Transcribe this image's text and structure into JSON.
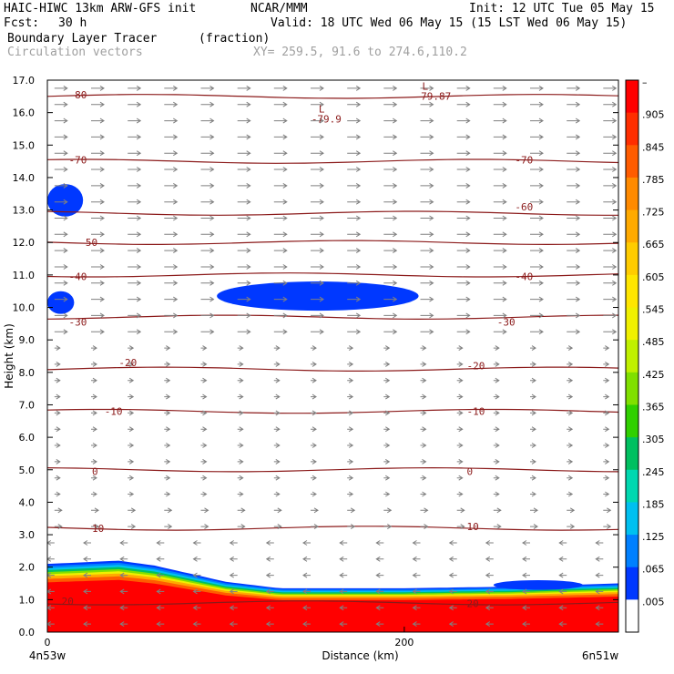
{
  "header": {
    "model": "HAIC-HIWC 13km ARW-GFS init",
    "org": "NCAR/MMM",
    "init": "Init: 12 UTC Tue 05 May 15",
    "fcst_label": "Fcst:",
    "fcst_value": "30 h",
    "valid": "Valid: 18 UTC Wed 06 May 15 (15 LST Wed 06 May 15)",
    "field1": "Boundary Layer Tracer",
    "field1_units": "(fraction)",
    "field2": "Circulation vectors",
    "xy": "XY= 259.5, 91.6 to 274.6,110.2"
  },
  "chart_data": {
    "type": "heatmap",
    "xlabel": "Distance (km)",
    "ylabel": "Height (km)",
    "xlim": [
      0,
      320
    ],
    "ylim": [
      0,
      17
    ],
    "x_ticks": [
      {
        "v": 0,
        "label": "0"
      },
      {
        "v": 200,
        "label": "200"
      }
    ],
    "x_end_labels": [
      "4n53w",
      "6n51w"
    ],
    "y_ticks": [
      "0.0",
      "1.0",
      "2.0",
      "3.0",
      "4.0",
      "5.0",
      "6.0",
      "7.0",
      "8.0",
      "9.0",
      "10.0",
      "11.0",
      "12.0",
      "13.0",
      "14.0",
      "15.0",
      "16.0",
      "17.0"
    ],
    "colorbar": {
      "labels": [
        "–",
        ".905",
        ".845",
        ".785",
        ".725",
        ".665",
        ".605",
        ".545",
        ".485",
        ".425",
        ".365",
        ".305",
        ".245",
        ".185",
        ".125",
        ".065",
        ".005"
      ],
      "colors": [
        "#ff0000",
        "#ff2e00",
        "#ff5c00",
        "#ff8a00",
        "#ffaa00",
        "#ffcc00",
        "#ffe600",
        "#f0f000",
        "#c0f000",
        "#80e000",
        "#30d000",
        "#00c060",
        "#00d8b0",
        "#00c0f0",
        "#0080ff",
        "#0038ff",
        "#ffffff"
      ]
    },
    "temperature_contours": [
      {
        "label": "-80",
        "y": 16.5
      },
      {
        "label": "-70",
        "y": 14.5
      },
      {
        "label": "-60",
        "y": 12.9
      },
      {
        "label": "-50",
        "y": 12.0
      },
      {
        "label": "-40",
        "y": 11.0
      },
      {
        "label": "-30",
        "y": 9.7
      },
      {
        "label": "-20",
        "y": 8.1
      },
      {
        "label": "-10",
        "y": 6.8
      },
      {
        "label": "0",
        "y": 5.0
      },
      {
        "label": "10",
        "y": 3.2
      },
      {
        "label": "20",
        "y": 0.9
      }
    ],
    "contour_label_positions": [
      {
        "label": "-80",
        "x": 12,
        "y": 16.55
      },
      {
        "label": "-70",
        "x": 12,
        "y": 14.55
      },
      {
        "label": "-70",
        "x": 262,
        "y": 14.55
      },
      {
        "label": "-60",
        "x": 262,
        "y": 13.1
      },
      {
        "label": "-50",
        "x": 18,
        "y": 12.0
      },
      {
        "label": "-40",
        "x": 12,
        "y": 10.95
      },
      {
        "label": "-40",
        "x": 262,
        "y": 10.95
      },
      {
        "label": "-30",
        "x": 12,
        "y": 9.55
      },
      {
        "label": "-30",
        "x": 252,
        "y": 9.55
      },
      {
        "label": "-20",
        "x": 40,
        "y": 8.3
      },
      {
        "label": "-20",
        "x": 235,
        "y": 8.2
      },
      {
        "label": "-10",
        "x": 32,
        "y": 6.8
      },
      {
        "label": "-10",
        "x": 235,
        "y": 6.8
      },
      {
        "label": "0",
        "x": 25,
        "y": 4.95
      },
      {
        "label": "0",
        "x": 235,
        "y": 4.95
      },
      {
        "label": "10",
        "x": 25,
        "y": 3.2
      },
      {
        "label": "10",
        "x": 235,
        "y": 3.25
      },
      {
        "label": "20",
        "x": 8,
        "y": 0.95
      },
      {
        "label": "20",
        "x": 235,
        "y": 0.88
      }
    ],
    "lows": [
      {
        "symbol": "L",
        "value": "-79.9",
        "x": 152,
        "y": 16.0
      },
      {
        "symbol": "L",
        "value": "-79.87",
        "x": 210,
        "y": 16.7
      }
    ],
    "bl_top_km": [
      [
        0,
        2.1
      ],
      [
        40,
        2.2
      ],
      [
        60,
        2.05
      ],
      [
        100,
        1.55
      ],
      [
        130,
        1.35
      ],
      [
        160,
        1.35
      ],
      [
        200,
        1.35
      ],
      [
        260,
        1.4
      ],
      [
        320,
        1.5
      ]
    ],
    "cloud_blobs": [
      {
        "name": "upper-left",
        "x0": 0,
        "x1": 20,
        "y0": 12.8,
        "y1": 13.8
      },
      {
        "name": "mid-left",
        "x0": 0,
        "x1": 15,
        "y0": 9.8,
        "y1": 10.5
      },
      {
        "name": "central",
        "x0": 95,
        "x1": 208,
        "y0": 9.9,
        "y1": 10.8
      },
      {
        "name": "lower-right",
        "x0": 250,
        "x1": 300,
        "y0": 1.3,
        "y1": 1.6
      }
    ]
  }
}
